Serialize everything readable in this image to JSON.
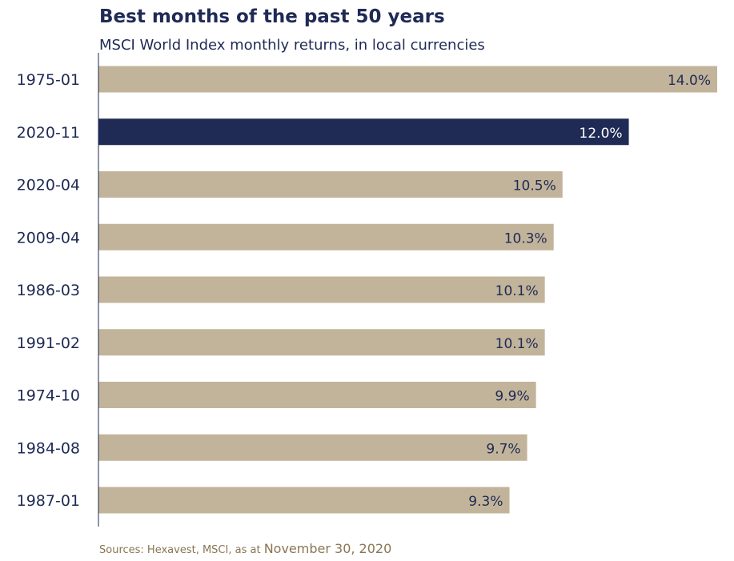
{
  "title": "Best months of the past 50 years",
  "subtitle": "MSCI World Index monthly returns, in local currencies",
  "source": {
    "prefix": "Sources: Hexavest, MSCI, as at ",
    "date": "November 30, 2020"
  },
  "colors": {
    "bar": "#c2b49a",
    "highlight_bar": "#1f2a55",
    "label_text": "#1f2a55",
    "highlight_label_text": "#ffffff",
    "axis": "#1f2a55",
    "title": "#1f2a55",
    "source": "#8a7553"
  },
  "chart_data": {
    "type": "bar",
    "orientation": "horizontal",
    "categories": [
      "1975-01",
      "2020-11",
      "2020-04",
      "2009-04",
      "1986-03",
      "1991-02",
      "1974-10",
      "1984-08",
      "1987-01"
    ],
    "values": [
      14.0,
      12.0,
      10.5,
      10.3,
      10.1,
      10.1,
      9.9,
      9.7,
      9.3
    ],
    "data_labels": [
      "14.0%",
      "12.0%",
      "10.5%",
      "10.3%",
      "10.1%",
      "10.1%",
      "9.9%",
      "9.7%",
      "9.3%"
    ],
    "highlighted_category": "2020-11",
    "xlim": [
      0,
      14.0
    ],
    "title": "Best months of the past 50 years",
    "subtitle": "MSCI World Index monthly returns, in local currencies",
    "grid": false,
    "legend": "none"
  }
}
